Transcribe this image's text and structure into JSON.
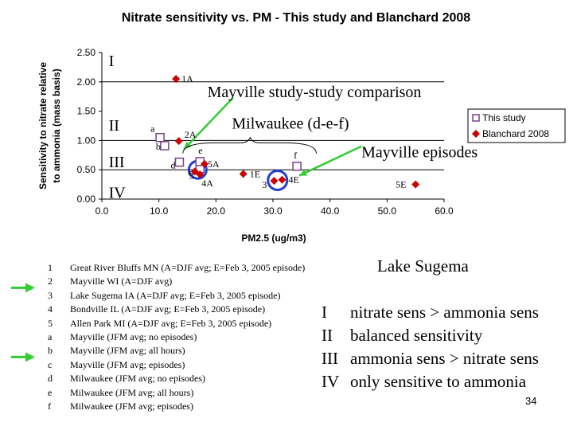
{
  "chart_data": {
    "type": "scatter",
    "title": "Nitrate sensitivity vs. PM - This study and Blanchard 2008",
    "xlabel": "PM2.5 (ug/m3)",
    "ylabel": "Sensitivity to nitrate relative to ammonia (mass basis)",
    "xlim": [
      0,
      60
    ],
    "ylim": [
      0,
      2.5
    ],
    "xticks": [
      "0.0",
      "10.0",
      "20.0",
      "30.0",
      "40.0",
      "50.0",
      "60.0"
    ],
    "yticks": [
      "0.00",
      "0.50",
      "1.00",
      "1.50",
      "2.00",
      "2.50"
    ],
    "grid": false,
    "legend_position": "top-right",
    "regime_lines_y": [
      2.0,
      1.0,
      0.5
    ],
    "series": [
      {
        "name": "This study",
        "color": "#7b3f91",
        "marker": "open-square",
        "points": [
          {
            "label": "a",
            "x": 10.2,
            "y": 1.05
          },
          {
            "label": "b",
            "x": 11.0,
            "y": 0.91
          },
          {
            "label": "c",
            "x": 17.2,
            "y": 0.52
          },
          {
            "label": "d",
            "x": 13.6,
            "y": 0.63
          },
          {
            "label": "e",
            "x": 17.2,
            "y": 0.64
          },
          {
            "label": "f",
            "x": 34.2,
            "y": 0.56
          }
        ]
      },
      {
        "name": "Blanchard 2008",
        "color": "#cc0000",
        "marker": "diamond",
        "points": [
          {
            "label": "1A",
            "x": 13.0,
            "y": 2.05
          },
          {
            "label": "2A",
            "x": 13.5,
            "y": 0.99
          },
          {
            "label": "3",
            "x": 16.3,
            "y": 0.47
          },
          {
            "label": "4A",
            "x": 17.2,
            "y": 0.42
          },
          {
            "label": "5A",
            "x": 18.0,
            "y": 0.6
          },
          {
            "label": "1E",
            "x": 24.8,
            "y": 0.43
          },
          {
            "label": "3",
            "x": 30.2,
            "y": 0.31
          },
          {
            "label": "4E",
            "x": 31.6,
            "y": 0.33
          },
          {
            "label": "5E",
            "x": 55.0,
            "y": 0.25
          }
        ]
      }
    ],
    "annotations": {
      "regimes": [
        "I",
        "II",
        "III",
        "IV"
      ],
      "mayville_comparison": "Mayville study-study comparison",
      "milwaukee": "Milwaukee (d-e-f)",
      "mayville_episodes": "Mayville episodes",
      "lake_sugema": "Lake Sugema"
    }
  },
  "site_legend": [
    {
      "num": "1",
      "text": "Great River Bluffs MN (A=DJF avg; E=Feb 3, 2005 episode)",
      "arrow": false
    },
    {
      "num": "2",
      "text": "Mayville WI (A=DJF avg)",
      "arrow": true
    },
    {
      "num": "3",
      "text": "Lake Sugema IA (A=DJF avg; E=Feb 3, 2005 episode)",
      "arrow": false
    },
    {
      "num": "4",
      "text": "Bondville IL (A=DJF avg; E=Feb 3, 2005 episode)",
      "arrow": false
    },
    {
      "num": "5",
      "text": "Allen Park MI (A=DJF avg; E=Feb 3, 2005 episode)",
      "arrow": false
    },
    {
      "num": "a",
      "text": "Mayville (JFM avg; no episodes)",
      "arrow": false
    },
    {
      "num": "b",
      "text": "Mayville (JFM avg; all hours)",
      "arrow": true
    },
    {
      "num": "c",
      "text": "Mayville (JFM avg; episodes)",
      "arrow": false
    },
    {
      "num": "d",
      "text": "Milwaukee (JFM avg; no episodes)",
      "arrow": false
    },
    {
      "num": "e",
      "text": "Milwaukee (JFM avg; all hours)",
      "arrow": false
    },
    {
      "num": "f",
      "text": "Milwaukee (JFM avg; episodes)",
      "arrow": false
    }
  ],
  "regime_legend": [
    {
      "num": "I",
      "text": "nitrate sens > ammonia sens"
    },
    {
      "num": "II",
      "text": "balanced sensitivity"
    },
    {
      "num": "III",
      "text": "ammonia sens > nitrate sens"
    },
    {
      "num": "IV",
      "text": "only sensitive to ammonia"
    }
  ],
  "colors": {
    "arrow_green": "#33cc33",
    "circle_blue": "#1f3fd6",
    "open_square": "#7b3f91",
    "diamond": "#cc0000"
  },
  "slide_number": "34"
}
